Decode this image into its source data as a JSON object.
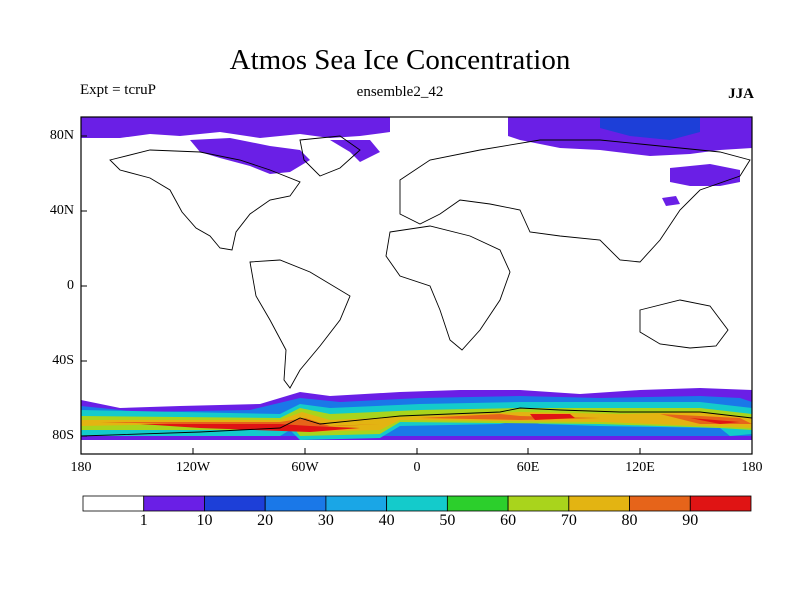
{
  "title": "Atmos Sea Ice Concentration",
  "expt": "Expt = tcruP",
  "ensemble": "ensemble2_42",
  "season": "JJA",
  "lat_labels": [
    "80N",
    "40N",
    "0",
    "40S",
    "80S"
  ],
  "lon_labels": [
    "180",
    "120W",
    "60W",
    "0",
    "60E",
    "120E",
    "180"
  ],
  "colorbar": {
    "labels": [
      "1",
      "10",
      "20",
      "30",
      "40",
      "50",
      "60",
      "70",
      "80",
      "90"
    ],
    "colors": [
      "#ffffff",
      "#6a1fe6",
      "#1d3fd8",
      "#1a78e8",
      "#1aa6e6",
      "#14cbcb",
      "#2ccf2c",
      "#a9d41c",
      "#e3b412",
      "#e6641a",
      "#e01414"
    ]
  }
}
